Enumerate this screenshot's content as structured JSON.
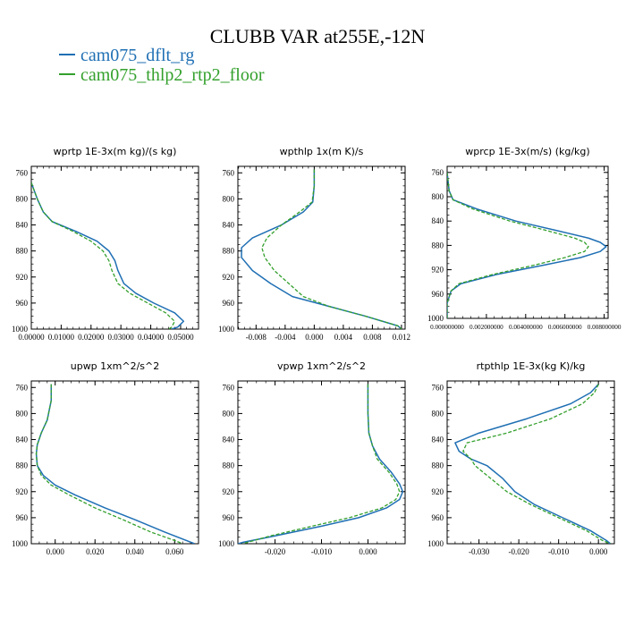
{
  "figure": {
    "title": "CLUBB VAR at255E,-12N",
    "legend": [
      {
        "name": "cam075_dflt_rg",
        "color": "#1f6fb4",
        "dash": "solid"
      },
      {
        "name": "cam075_thlp2_rtp2_floor",
        "color": "#33a02c",
        "dash": "dashed"
      }
    ]
  },
  "chart_data": [
    {
      "type": "line",
      "title": "wprtp  1E-3x(m kg)/(s kg)",
      "xlim": [
        0,
        0.056
      ],
      "ylim": [
        1000,
        750
      ],
      "xticks": [
        0,
        0.01,
        0.02,
        0.03,
        0.04,
        0.05
      ],
      "xtick_labels": [
        "0.00000",
        "0.01000",
        "0.02000",
        "0.03000",
        "0.04000",
        "0.05000"
      ],
      "yticks": [
        760,
        800,
        840,
        880,
        920,
        960,
        1000
      ],
      "series": [
        {
          "name": "cam075_dflt_rg",
          "points": [
            [
              0,
              775
            ],
            [
              0.002,
              800
            ],
            [
              0.004,
              820
            ],
            [
              0.007,
              835
            ],
            [
              0.015,
              850
            ],
            [
              0.022,
              865
            ],
            [
              0.026,
              880
            ],
            [
              0.028,
              895
            ],
            [
              0.029,
              910
            ],
            [
              0.031,
              930
            ],
            [
              0.035,
              945
            ],
            [
              0.041,
              960
            ],
            [
              0.048,
              975
            ],
            [
              0.051,
              988
            ],
            [
              0.049,
              997
            ],
            [
              0.047,
              1000
            ]
          ]
        },
        {
          "name": "cam075_thlp2_rtp2_floor",
          "points": [
            [
              0,
              775
            ],
            [
              0.002,
              800
            ],
            [
              0.004,
              820
            ],
            [
              0.007,
              835
            ],
            [
              0.014,
              850
            ],
            [
              0.02,
              865
            ],
            [
              0.024,
              880
            ],
            [
              0.026,
              895
            ],
            [
              0.027,
              910
            ],
            [
              0.029,
              930
            ],
            [
              0.033,
              945
            ],
            [
              0.039,
              960
            ],
            [
              0.045,
              975
            ],
            [
              0.048,
              988
            ],
            [
              0.047,
              997
            ],
            [
              0.046,
              1000
            ]
          ]
        }
      ]
    },
    {
      "type": "line",
      "title": "wpthlp  1x(m K)/s",
      "xlim": [
        -0.0105,
        0.0125
      ],
      "ylim": [
        1000,
        750
      ],
      "xticks": [
        -0.008,
        -0.004,
        0,
        0.004,
        0.008,
        0.012
      ],
      "xtick_labels": [
        "-0.008",
        "-0.004",
        "0.000",
        "0.004",
        "0.008",
        "0.012"
      ],
      "yticks": [
        760,
        800,
        840,
        880,
        920,
        960,
        1000
      ],
      "series": [
        {
          "name": "cam075_dflt_rg",
          "points": [
            [
              0,
              755
            ],
            [
              0,
              780
            ],
            [
              -0.0002,
              805
            ],
            [
              -0.0015,
              820
            ],
            [
              -0.0045,
              840
            ],
            [
              -0.0085,
              860
            ],
            [
              -0.01,
              875
            ],
            [
              -0.01,
              890
            ],
            [
              -0.0085,
              910
            ],
            [
              -0.006,
              930
            ],
            [
              -0.003,
              950
            ],
            [
              0.002,
              965
            ],
            [
              0.007,
              980
            ],
            [
              0.0115,
              995
            ],
            [
              0.012,
              1000
            ]
          ]
        },
        {
          "name": "cam075_thlp2_rtp2_floor",
          "points": [
            [
              0,
              755
            ],
            [
              0,
              780
            ],
            [
              -0.0003,
              805
            ],
            [
              -0.002,
              820
            ],
            [
              -0.0045,
              840
            ],
            [
              -0.0065,
              860
            ],
            [
              -0.0072,
              875
            ],
            [
              -0.0068,
              890
            ],
            [
              -0.0055,
              910
            ],
            [
              -0.0035,
              930
            ],
            [
              -0.0015,
              950
            ],
            [
              0.002,
              965
            ],
            [
              0.007,
              980
            ],
            [
              0.0115,
              995
            ],
            [
              0.012,
              1000
            ]
          ]
        }
      ]
    },
    {
      "type": "line",
      "title": "wprcp  1E-3x(m/s) (kg/kg)",
      "xlim": [
        0,
        0.0082
      ],
      "ylim": [
        1000,
        750
      ],
      "xticks": [
        0,
        0.002,
        0.004,
        0.006,
        0.008
      ],
      "xtick_labels": [
        "0.000000000",
        "0.002000000",
        "0.004000000",
        "0.006000000",
        "0.008000000"
      ],
      "yticks": [
        760,
        800,
        840,
        880,
        920,
        960,
        1000
      ],
      "series": [
        {
          "name": "cam075_dflt_rg",
          "points": [
            [
              0,
              760
            ],
            [
              0.0001,
              790
            ],
            [
              0.0003,
              805
            ],
            [
              0.0015,
              820
            ],
            [
              0.0035,
              840
            ],
            [
              0.0055,
              855
            ],
            [
              0.0072,
              868
            ],
            [
              0.0078,
              875
            ],
            [
              0.0081,
              882
            ],
            [
              0.0078,
              890
            ],
            [
              0.0068,
              900
            ],
            [
              0.005,
              912
            ],
            [
              0.0025,
              928
            ],
            [
              0.0007,
              943
            ],
            [
              0.0002,
              955
            ],
            [
              0,
              975
            ],
            [
              0,
              1000
            ]
          ]
        },
        {
          "name": "cam075_thlp2_rtp2_floor",
          "points": [
            [
              0,
              760
            ],
            [
              0.0001,
              790
            ],
            [
              0.0003,
              805
            ],
            [
              0.0013,
              820
            ],
            [
              0.0032,
              840
            ],
            [
              0.005,
              855
            ],
            [
              0.0065,
              868
            ],
            [
              0.007,
              875
            ],
            [
              0.0072,
              882
            ],
            [
              0.007,
              890
            ],
            [
              0.006,
              900
            ],
            [
              0.0045,
              912
            ],
            [
              0.0023,
              928
            ],
            [
              0.0006,
              943
            ],
            [
              0.0002,
              955
            ],
            [
              0,
              975
            ],
            [
              0,
              1000
            ]
          ]
        }
      ]
    },
    {
      "type": "line",
      "title": "upwp  1xm^2/s^2",
      "xlim": [
        -0.012,
        0.072
      ],
      "ylim": [
        1000,
        750
      ],
      "xticks": [
        0,
        0.02,
        0.04,
        0.06
      ],
      "xtick_labels": [
        "0.000",
        "0.020",
        "0.040",
        "0.060"
      ],
      "yticks": [
        760,
        800,
        840,
        880,
        920,
        960,
        1000
      ],
      "series": [
        {
          "name": "cam075_dflt_rg",
          "points": [
            [
              -0.002,
              755
            ],
            [
              -0.002,
              780
            ],
            [
              -0.004,
              810
            ],
            [
              -0.007,
              830
            ],
            [
              -0.009,
              848
            ],
            [
              -0.0095,
              862
            ],
            [
              -0.009,
              880
            ],
            [
              -0.006,
              895
            ],
            [
              0,
              910
            ],
            [
              0.01,
              925
            ],
            [
              0.025,
              945
            ],
            [
              0.04,
              963
            ],
            [
              0.055,
              982
            ],
            [
              0.07,
              1000
            ]
          ]
        },
        {
          "name": "cam075_thlp2_rtp2_floor",
          "points": [
            [
              -0.002,
              755
            ],
            [
              -0.002,
              780
            ],
            [
              -0.004,
              810
            ],
            [
              -0.007,
              830
            ],
            [
              -0.009,
              848
            ],
            [
              -0.0095,
              862
            ],
            [
              -0.009,
              880
            ],
            [
              -0.007,
              895
            ],
            [
              -0.002,
              910
            ],
            [
              0.007,
              925
            ],
            [
              0.02,
              945
            ],
            [
              0.034,
              963
            ],
            [
              0.048,
              982
            ],
            [
              0.06,
              995
            ],
            [
              0.064,
              1000
            ]
          ]
        }
      ]
    },
    {
      "type": "line",
      "title": "vpwp  1xm^2/s^2",
      "xlim": [
        -0.028,
        0.008
      ],
      "ylim": [
        1000,
        750
      ],
      "xticks": [
        -0.02,
        -0.01,
        0
      ],
      "xtick_labels": [
        "-0.020",
        "-0.010",
        "0.000"
      ],
      "yticks": [
        760,
        800,
        840,
        880,
        920,
        960,
        1000
      ],
      "series": [
        {
          "name": "cam075_dflt_rg",
          "points": [
            [
              0,
              755
            ],
            [
              0,
              800
            ],
            [
              0.0002,
              830
            ],
            [
              0.001,
              850
            ],
            [
              0.0025,
              870
            ],
            [
              0.005,
              890
            ],
            [
              0.0068,
              908
            ],
            [
              0.0075,
              920
            ],
            [
              0.0068,
              932
            ],
            [
              0.004,
              945
            ],
            [
              -0.002,
              960
            ],
            [
              -0.01,
              973
            ],
            [
              -0.02,
              988
            ],
            [
              -0.027,
              998
            ],
            [
              -0.028,
              1000
            ]
          ]
        },
        {
          "name": "cam075_thlp2_rtp2_floor",
          "points": [
            [
              0,
              755
            ],
            [
              0,
              800
            ],
            [
              0.0002,
              830
            ],
            [
              0.001,
              850
            ],
            [
              0.002,
              870
            ],
            [
              0.0045,
              890
            ],
            [
              0.0062,
              908
            ],
            [
              0.0068,
              920
            ],
            [
              0.006,
              932
            ],
            [
              0.003,
              945
            ],
            [
              -0.004,
              960
            ],
            [
              -0.012,
              973
            ],
            [
              -0.021,
              988
            ],
            [
              -0.026,
              998
            ],
            [
              -0.027,
              1000
            ]
          ]
        }
      ]
    },
    {
      "type": "line",
      "title": "rtpthlp  1E-3x(kg K)/kg",
      "xlim": [
        -0.038,
        0.004
      ],
      "ylim": [
        1000,
        750
      ],
      "xticks": [
        -0.03,
        -0.02,
        -0.01,
        0
      ],
      "xtick_labels": [
        "-0.030",
        "-0.020",
        "-0.010",
        "0.000"
      ],
      "yticks": [
        760,
        800,
        840,
        880,
        920,
        960,
        1000
      ],
      "series": [
        {
          "name": "cam075_dflt_rg",
          "points": [
            [
              0,
              755
            ],
            [
              -0.002,
              768
            ],
            [
              -0.007,
              785
            ],
            [
              -0.018,
              808
            ],
            [
              -0.03,
              830
            ],
            [
              -0.036,
              845
            ],
            [
              -0.035,
              858
            ],
            [
              -0.032,
              870
            ],
            [
              -0.028,
              880
            ],
            [
              -0.024,
              900
            ],
            [
              -0.021,
              920
            ],
            [
              -0.016,
              940
            ],
            [
              -0.009,
              960
            ],
            [
              -0.002,
              980
            ],
            [
              0.002,
              995
            ],
            [
              0.003,
              1000
            ]
          ]
        },
        {
          "name": "cam075_thlp2_rtp2_floor",
          "points": [
            [
              0,
              755
            ],
            [
              -0.001,
              768
            ],
            [
              -0.004,
              785
            ],
            [
              -0.012,
              808
            ],
            [
              -0.023,
              830
            ],
            [
              -0.033,
              845
            ],
            [
              -0.034,
              858
            ],
            [
              -0.032,
              870
            ],
            [
              -0.031,
              880
            ],
            [
              -0.027,
              900
            ],
            [
              -0.023,
              920
            ],
            [
              -0.017,
              940
            ],
            [
              -0.01,
              960
            ],
            [
              -0.003,
              980
            ],
            [
              0.001,
              995
            ],
            [
              0.003,
              1000
            ]
          ]
        }
      ]
    }
  ]
}
